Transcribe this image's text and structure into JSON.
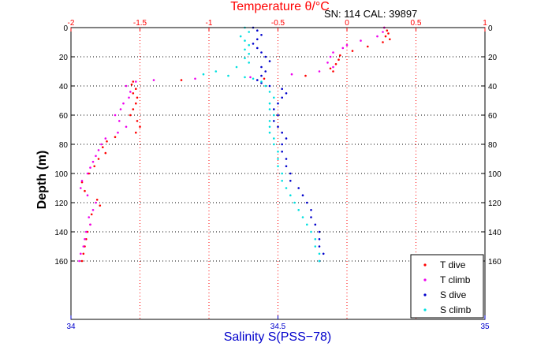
{
  "chart_data": {
    "type": "scatter",
    "title": "Temperature θ/°C",
    "annotation": "SN: 114  CAL: 39897",
    "xlabel_bottom": "Salinity S(PSS−78)",
    "ylabel": "Depth (m)",
    "grid": true,
    "top_axis": {
      "range": [
        -2,
        1
      ],
      "ticks": [
        -2,
        -1.5,
        -1,
        -0.5,
        0,
        0.5,
        1
      ],
      "tick_labels": [
        "-2",
        "-1.5",
        "-1",
        "-0.5",
        "0",
        "0.5",
        "1"
      ],
      "color": "#ff0000"
    },
    "bottom_axis": {
      "range": [
        34,
        35
      ],
      "ticks": [
        34,
        34.5,
        35
      ],
      "tick_labels": [
        "34",
        "34.5",
        "35"
      ],
      "color": "#0000cc"
    },
    "y_axis": {
      "range": [
        0,
        200
      ],
      "ticks": [
        0,
        20,
        40,
        60,
        80,
        100,
        120,
        140,
        160
      ],
      "tick_labels": [
        "0",
        "20",
        "40",
        "60",
        "80",
        "100",
        "120",
        "140",
        "160"
      ],
      "reversed": true
    },
    "legend": {
      "position": "bottom-right",
      "entries": [
        "T dive",
        "T climb",
        "S dive",
        "S climb"
      ]
    },
    "series": [
      {
        "name": "T dive",
        "axis": "top",
        "color": "#ff0000",
        "points": [
          [
            0.27,
            0
          ],
          [
            0.29,
            2
          ],
          [
            0.3,
            4
          ],
          [
            0.28,
            6
          ],
          [
            0.31,
            8
          ],
          [
            0.26,
            10
          ],
          [
            0.15,
            13
          ],
          [
            0.04,
            16
          ],
          [
            -0.05,
            19
          ],
          [
            -0.06,
            22
          ],
          [
            -0.08,
            25
          ],
          [
            -0.12,
            28
          ],
          [
            -0.1,
            30
          ],
          [
            -0.3,
            33
          ],
          [
            -0.6,
            35
          ],
          [
            -1.2,
            36
          ],
          [
            -1.55,
            37
          ],
          [
            -1.56,
            39
          ],
          [
            -1.53,
            42
          ],
          [
            -1.55,
            45
          ],
          [
            -1.52,
            48
          ],
          [
            -1.53,
            52
          ],
          [
            -1.55,
            56
          ],
          [
            -1.57,
            60
          ],
          [
            -1.52,
            64
          ],
          [
            -1.5,
            68
          ],
          [
            -1.53,
            72
          ],
          [
            -1.68,
            75
          ],
          [
            -1.74,
            78
          ],
          [
            -1.77,
            82
          ],
          [
            -1.75,
            86
          ],
          [
            -1.8,
            90
          ],
          [
            -1.83,
            95
          ],
          [
            -1.87,
            100
          ],
          [
            -1.92,
            106
          ],
          [
            -1.9,
            112
          ],
          [
            -1.81,
            118
          ],
          [
            -1.79,
            122
          ],
          [
            -1.85,
            128
          ],
          [
            -1.86,
            135
          ],
          [
            -1.88,
            140
          ],
          [
            -1.89,
            145
          ],
          [
            -1.9,
            150
          ],
          [
            -1.91,
            155
          ],
          [
            -1.92,
            160
          ]
        ]
      },
      {
        "name": "T climb",
        "axis": "top",
        "color": "#ee00ee",
        "points": [
          [
            0.27,
            0
          ],
          [
            0.26,
            3
          ],
          [
            0.22,
            6
          ],
          [
            0.1,
            9
          ],
          [
            0.0,
            12
          ],
          [
            -0.03,
            14
          ],
          [
            -0.1,
            17
          ],
          [
            -0.12,
            20
          ],
          [
            -0.14,
            24
          ],
          [
            -0.1,
            27
          ],
          [
            -0.2,
            30
          ],
          [
            -0.4,
            32
          ],
          [
            -0.7,
            34
          ],
          [
            -1.1,
            35
          ],
          [
            -1.4,
            36
          ],
          [
            -1.53,
            37
          ],
          [
            -1.6,
            40
          ],
          [
            -1.57,
            44
          ],
          [
            -1.58,
            48
          ],
          [
            -1.62,
            52
          ],
          [
            -1.64,
            56
          ],
          [
            -1.68,
            60
          ],
          [
            -1.65,
            64
          ],
          [
            -1.6,
            68
          ],
          [
            -1.66,
            72
          ],
          [
            -1.75,
            76
          ],
          [
            -1.78,
            80
          ],
          [
            -1.8,
            84
          ],
          [
            -1.82,
            88
          ],
          [
            -1.84,
            92
          ],
          [
            -1.86,
            96
          ],
          [
            -1.88,
            100
          ],
          [
            -1.92,
            105
          ],
          [
            -1.93,
            110
          ],
          [
            -1.88,
            115
          ],
          [
            -1.82,
            120
          ],
          [
            -1.84,
            125
          ],
          [
            -1.87,
            130
          ],
          [
            -1.86,
            135
          ],
          [
            -1.89,
            140
          ],
          [
            -1.9,
            145
          ],
          [
            -1.91,
            150
          ],
          [
            -1.93,
            155
          ],
          [
            -1.94,
            160
          ]
        ]
      },
      {
        "name": "S dive",
        "axis": "bottom",
        "color": "#0000cc",
        "points": [
          [
            34.44,
            0
          ],
          [
            34.45,
            2
          ],
          [
            34.46,
            5
          ],
          [
            34.45,
            8
          ],
          [
            34.44,
            11
          ],
          [
            34.45,
            14
          ],
          [
            34.46,
            17
          ],
          [
            34.47,
            20
          ],
          [
            34.48,
            23
          ],
          [
            34.46,
            27
          ],
          [
            34.47,
            30
          ],
          [
            34.46,
            33
          ],
          [
            34.45,
            36
          ],
          [
            34.46,
            38
          ],
          [
            34.48,
            40
          ],
          [
            34.51,
            42
          ],
          [
            34.52,
            45
          ],
          [
            34.51,
            48
          ],
          [
            34.5,
            52
          ],
          [
            34.49,
            56
          ],
          [
            34.5,
            60
          ],
          [
            34.49,
            64
          ],
          [
            34.5,
            68
          ],
          [
            34.51,
            72
          ],
          [
            34.52,
            76
          ],
          [
            34.51,
            80
          ],
          [
            34.51,
            85
          ],
          [
            34.52,
            90
          ],
          [
            34.52,
            95
          ],
          [
            34.53,
            100
          ],
          [
            34.53,
            105
          ],
          [
            34.55,
            110
          ],
          [
            34.56,
            115
          ],
          [
            34.57,
            120
          ],
          [
            34.58,
            125
          ],
          [
            34.58,
            130
          ],
          [
            34.59,
            135
          ],
          [
            34.6,
            140
          ],
          [
            34.6,
            145
          ],
          [
            34.6,
            150
          ],
          [
            34.61,
            155
          ],
          [
            34.6,
            160
          ]
        ]
      },
      {
        "name": "S climb",
        "axis": "bottom",
        "color": "#00e0e0",
        "points": [
          [
            34.42,
            0
          ],
          [
            34.43,
            3
          ],
          [
            34.41,
            6
          ],
          [
            34.42,
            9
          ],
          [
            34.43,
            12
          ],
          [
            34.42,
            15
          ],
          [
            34.43,
            18
          ],
          [
            34.42,
            21
          ],
          [
            34.43,
            24
          ],
          [
            34.4,
            27
          ],
          [
            34.35,
            30
          ],
          [
            34.32,
            32
          ],
          [
            34.38,
            33
          ],
          [
            34.42,
            34
          ],
          [
            34.44,
            35
          ],
          [
            34.46,
            37
          ],
          [
            34.47,
            40
          ],
          [
            34.48,
            44
          ],
          [
            34.49,
            48
          ],
          [
            34.48,
            52
          ],
          [
            34.48,
            56
          ],
          [
            34.49,
            60
          ],
          [
            34.48,
            64
          ],
          [
            34.48,
            68
          ],
          [
            34.48,
            72
          ],
          [
            34.49,
            76
          ],
          [
            34.49,
            80
          ],
          [
            34.5,
            85
          ],
          [
            34.5,
            90
          ],
          [
            34.5,
            95
          ],
          [
            34.51,
            100
          ],
          [
            34.51,
            105
          ],
          [
            34.52,
            110
          ],
          [
            34.53,
            115
          ],
          [
            34.54,
            120
          ],
          [
            34.55,
            125
          ],
          [
            34.56,
            130
          ],
          [
            34.57,
            135
          ],
          [
            34.58,
            140
          ],
          [
            34.59,
            145
          ],
          [
            34.59,
            150
          ],
          [
            34.6,
            155
          ],
          [
            34.6,
            160
          ]
        ]
      }
    ]
  }
}
